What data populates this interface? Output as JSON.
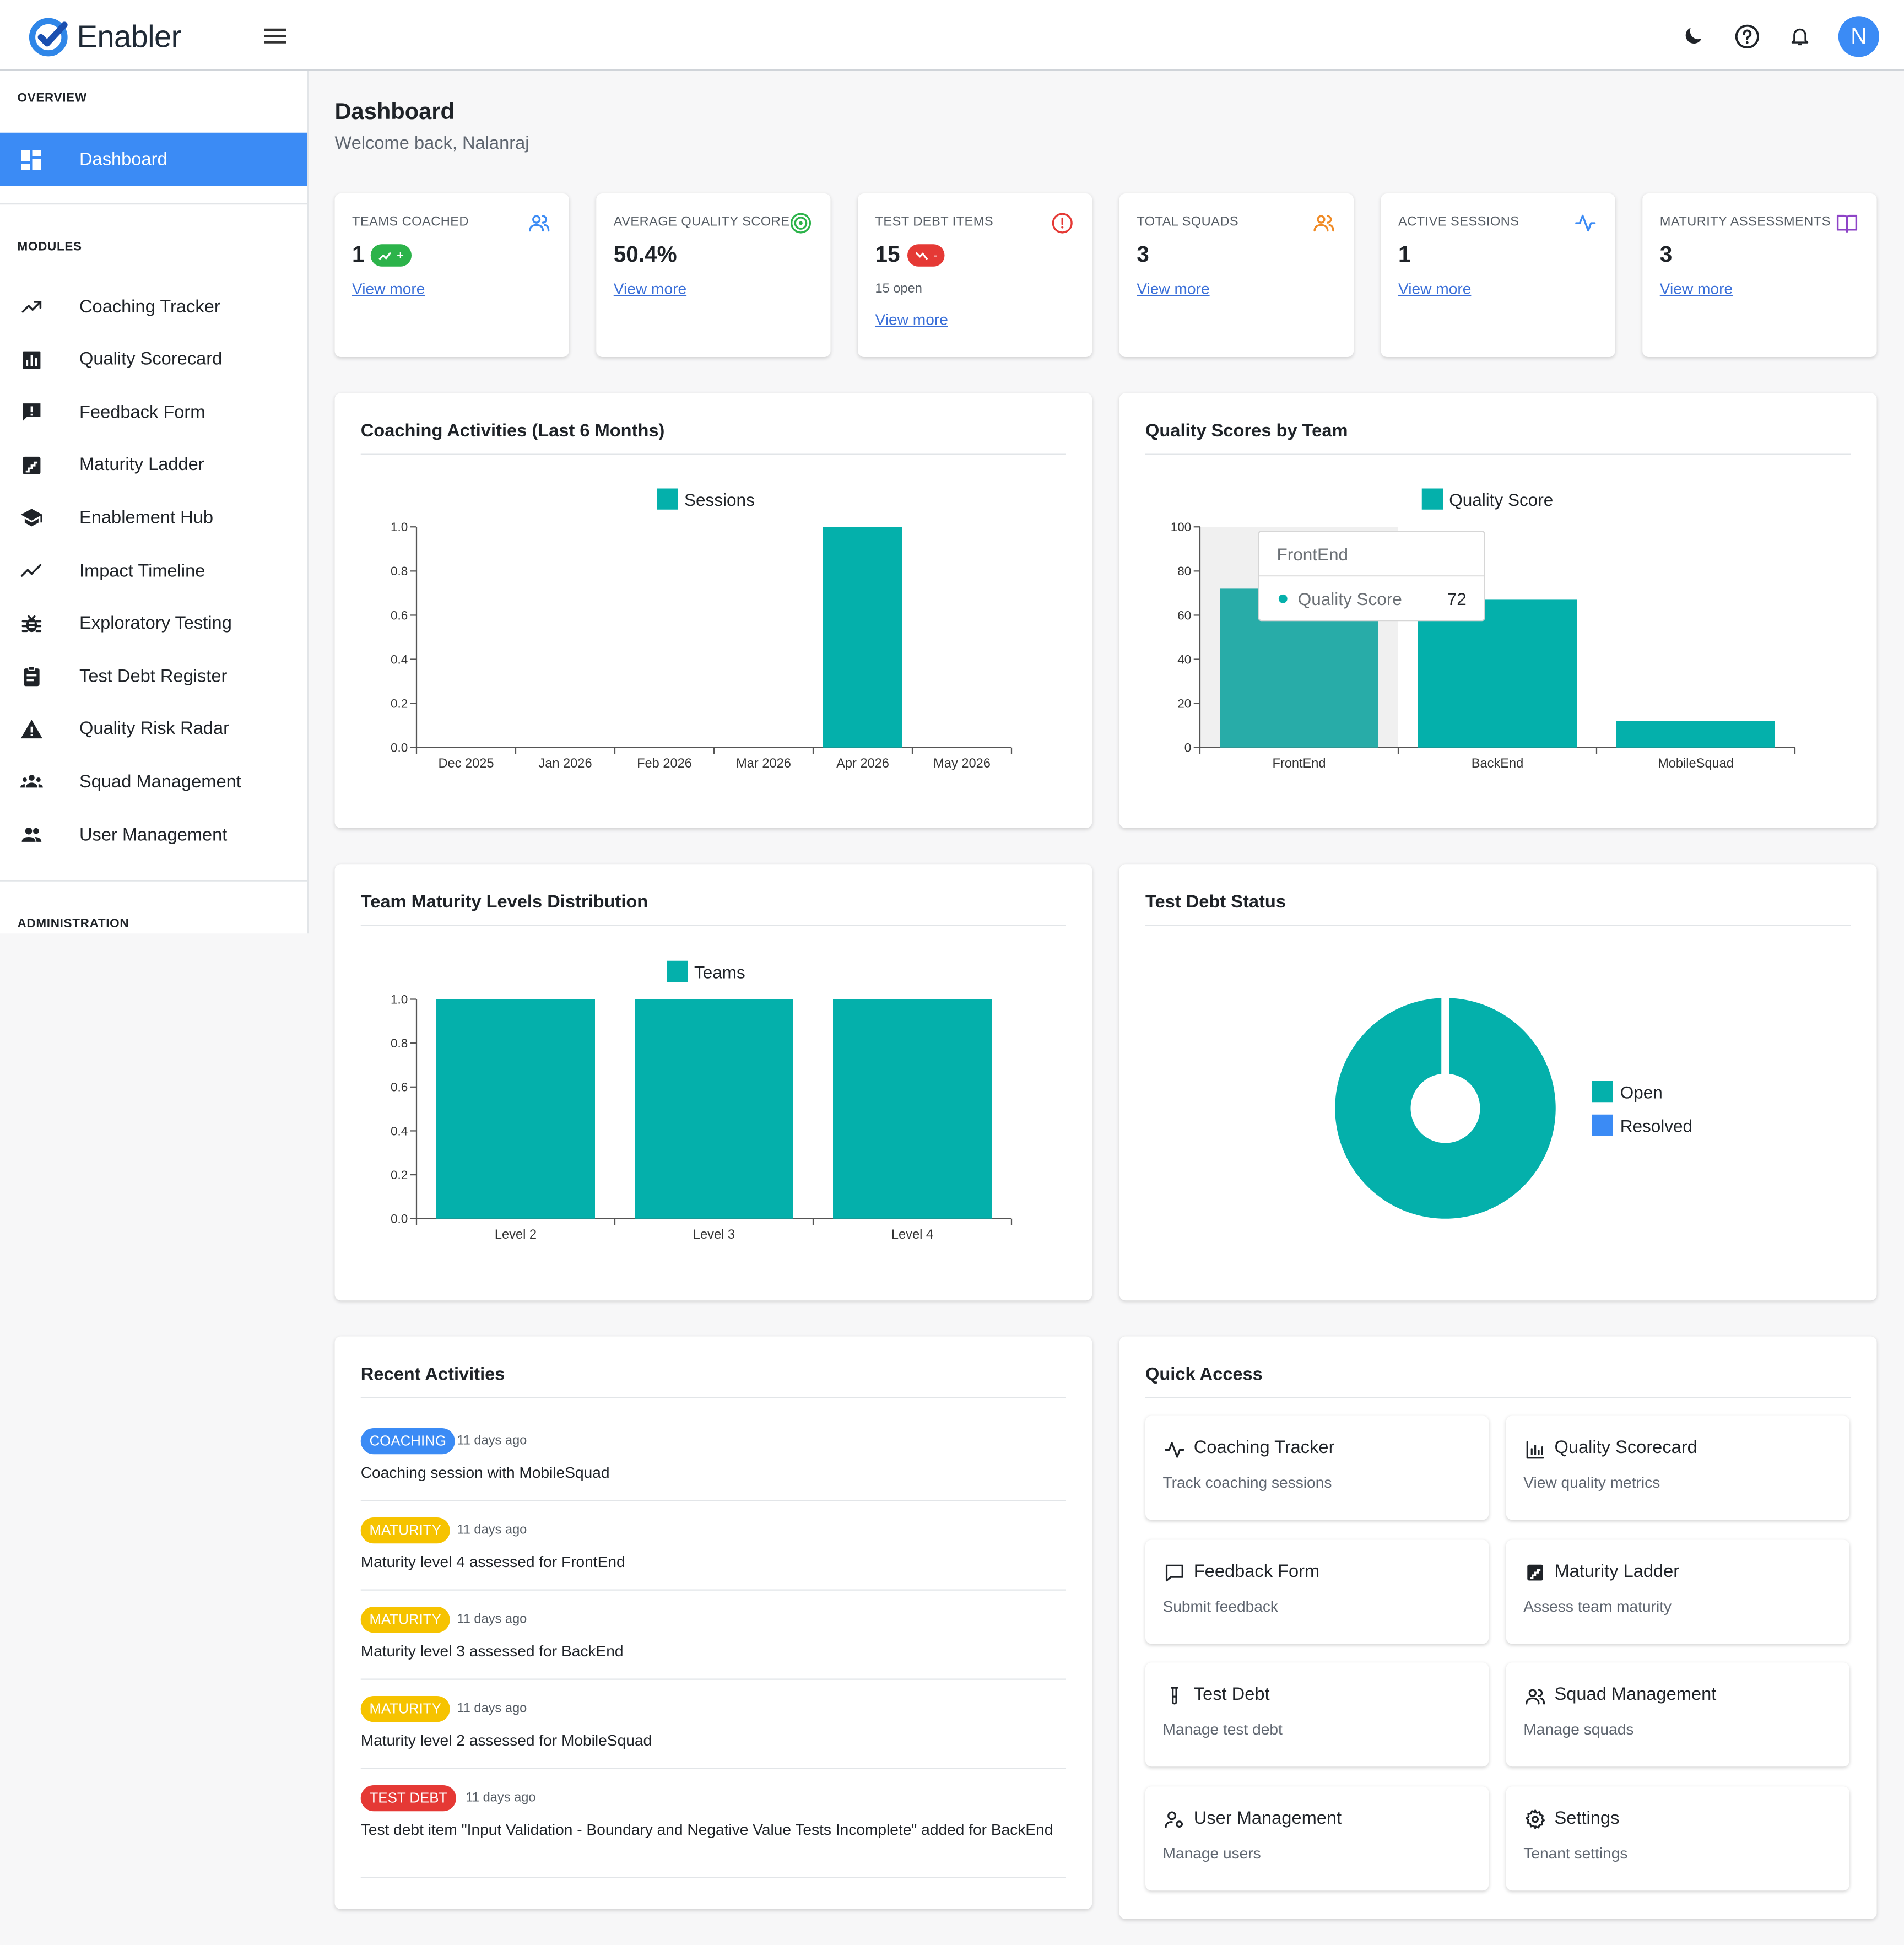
{
  "app": {
    "name": "Enabler"
  },
  "colors": {
    "primary": "#3b8bf5",
    "teal": "#04b0ab",
    "green": "#2cb34a",
    "red": "#e53935",
    "amber": "#f6c300"
  },
  "sidebar": {
    "overview_label": "OVERVIEW",
    "modules_label": "MODULES",
    "admin_label": "ADMINISTRATION",
    "dashboard": {
      "label": "Dashboard",
      "icon": "dashboard-icon"
    },
    "modules": [
      {
        "label": "Coaching Tracker",
        "icon": "trending-up-icon"
      },
      {
        "label": "Quality Scorecard",
        "icon": "bar-chart-icon"
      },
      {
        "label": "Feedback Form",
        "icon": "feedback-icon"
      },
      {
        "label": "Maturity Ladder",
        "icon": "stairs-icon"
      },
      {
        "label": "Enablement Hub",
        "icon": "school-icon"
      },
      {
        "label": "Impact Timeline",
        "icon": "timeline-icon"
      },
      {
        "label": "Exploratory Testing",
        "icon": "bug-icon"
      },
      {
        "label": "Test Debt Register",
        "icon": "clipboard-icon"
      },
      {
        "label": "Quality Risk Radar",
        "icon": "warning-icon"
      },
      {
        "label": "Squad Management",
        "icon": "groups-icon"
      },
      {
        "label": "User Management",
        "icon": "people-icon"
      }
    ]
  },
  "header": {
    "avatar_initial": "N"
  },
  "page": {
    "title": "Dashboard",
    "subtitle": "Welcome back, Nalanraj"
  },
  "stats": [
    {
      "label": "TEAMS COACHED",
      "value": "1",
      "badge": "+",
      "badge_type": "up",
      "note": "",
      "link": "View more",
      "icon": "people-icon",
      "icon_color": "#3b8bf5"
    },
    {
      "label": "AVERAGE QUALITY SCORE",
      "value": "50.4%",
      "badge": "",
      "note": "",
      "link": "View more",
      "icon": "target-icon",
      "icon_color": "#2cb34a"
    },
    {
      "label": "TEST DEBT ITEMS",
      "value": "15",
      "badge": "-",
      "badge_type": "down",
      "note": "15 open",
      "link": "View more",
      "icon": "alert-circle-icon",
      "icon_color": "#e53935"
    },
    {
      "label": "TOTAL SQUADS",
      "value": "3",
      "badge": "",
      "note": "",
      "link": "View more",
      "icon": "people-icon",
      "icon_color": "#f08a24"
    },
    {
      "label": "ACTIVE SESSIONS",
      "value": "1",
      "badge": "",
      "note": "",
      "link": "View more",
      "icon": "activity-icon",
      "icon_color": "#3b8bf5"
    },
    {
      "label": "MATURITY ASSESSMENTS",
      "value": "3",
      "badge": "",
      "note": "",
      "link": "View more",
      "icon": "book-icon",
      "icon_color": "#8e44c7"
    }
  ],
  "panels": {
    "coaching": {
      "title": "Coaching Activities (Last 6 Months)"
    },
    "quality": {
      "title": "Quality Scores by Team",
      "tooltip": {
        "title": "FrontEnd",
        "series": "Quality Score",
        "value": "72"
      }
    },
    "maturity": {
      "title": "Team Maturity Levels Distribution"
    },
    "testdebt": {
      "title": "Test Debt Status"
    },
    "recent": {
      "title": "Recent Activities"
    },
    "quick": {
      "title": "Quick Access"
    }
  },
  "chart_data": [
    {
      "type": "bar",
      "title": "Coaching Activities (Last 6 Months)",
      "categories": [
        "Dec 2025",
        "Jan 2026",
        "Feb 2026",
        "Mar 2026",
        "Apr 2026",
        "May 2026"
      ],
      "series": [
        {
          "name": "Sessions",
          "values": [
            0,
            0,
            0,
            0,
            1,
            0
          ],
          "color": "#04b0ab"
        }
      ],
      "yticks": [
        "0.0",
        "0.2",
        "0.4",
        "0.6",
        "0.8",
        "1.0"
      ],
      "ylim": [
        0,
        1
      ],
      "legend": "top"
    },
    {
      "type": "bar",
      "title": "Quality Scores by Team",
      "categories": [
        "FrontEnd",
        "BackEnd",
        "MobileSquad"
      ],
      "series": [
        {
          "name": "Quality Score",
          "values": [
            72,
            67,
            12
          ],
          "color": "#04b0ab"
        }
      ],
      "yticks": [
        "0",
        "20",
        "40",
        "60",
        "80",
        "100"
      ],
      "ylim": [
        0,
        100
      ],
      "legend": "top"
    },
    {
      "type": "bar",
      "title": "Team Maturity Levels Distribution",
      "categories": [
        "Level 2",
        "Level 3",
        "Level 4"
      ],
      "series": [
        {
          "name": "Teams",
          "values": [
            1,
            1,
            1
          ],
          "color": "#04b0ab"
        }
      ],
      "yticks": [
        "0.0",
        "0.2",
        "0.4",
        "0.6",
        "0.8",
        "1.0"
      ],
      "ylim": [
        0,
        1
      ],
      "legend": "top"
    },
    {
      "type": "pie",
      "title": "Test Debt Status",
      "slices": [
        {
          "label": "Open",
          "value": 15,
          "color": "#04b0ab"
        },
        {
          "label": "Resolved",
          "value": 0,
          "color": "#3b8bf5"
        }
      ],
      "legend": "right"
    }
  ],
  "activities": [
    {
      "tag": "COACHING",
      "time": "11 days ago",
      "text": "Coaching session with MobileSquad",
      "bg": "#3b8bf5",
      "fg": "#ffffff"
    },
    {
      "tag": "MATURITY",
      "time": "11 days ago",
      "text": "Maturity level 4 assessed for FrontEnd",
      "bg": "#f6c300",
      "fg": "#ffffff"
    },
    {
      "tag": "MATURITY",
      "time": "11 days ago",
      "text": "Maturity level 3 assessed for BackEnd",
      "bg": "#f6c300",
      "fg": "#ffffff"
    },
    {
      "tag": "MATURITY",
      "time": "11 days ago",
      "text": "Maturity level 2 assessed for MobileSquad",
      "bg": "#f6c300",
      "fg": "#ffffff"
    },
    {
      "tag": "TEST DEBT",
      "time": "11 days ago",
      "text": "Test debt item \"Input Validation - Boundary and Negative Value Tests Incomplete\" added for BackEnd",
      "bg": "#e53935",
      "fg": "#ffffff"
    }
  ],
  "quick_access": [
    {
      "title": "Coaching Tracker",
      "sub": "Track coaching sessions",
      "icon": "activity-icon"
    },
    {
      "title": "Quality Scorecard",
      "sub": "View quality metrics",
      "icon": "bar-chart-icon"
    },
    {
      "title": "Feedback Form",
      "sub": "Submit feedback",
      "icon": "message-square-icon"
    },
    {
      "title": "Maturity Ladder",
      "sub": "Assess team maturity",
      "icon": "stairs-icon"
    },
    {
      "title": "Test Debt",
      "sub": "Manage test debt",
      "icon": "test-tube-icon"
    },
    {
      "title": "Squad Management",
      "sub": "Manage squads",
      "icon": "people-icon"
    },
    {
      "title": "User Management",
      "sub": "Manage users",
      "icon": "user-cog-icon"
    },
    {
      "title": "Settings",
      "sub": "Tenant settings",
      "icon": "gear-icon"
    }
  ]
}
